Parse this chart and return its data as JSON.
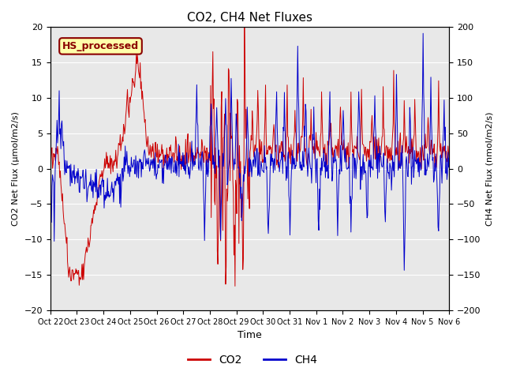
{
  "title": "CO2, CH4 Net Fluxes",
  "xlabel": "Time",
  "ylabel_left": "CO2 Net Flux (μmol/m2/s)",
  "ylabel_right": "CH4 Net Flux (nmol/m2/s)",
  "ylim_left": [
    -20,
    20
  ],
  "ylim_right": [
    -200,
    200
  ],
  "yticks_left": [
    -20,
    -15,
    -10,
    -5,
    0,
    5,
    10,
    15,
    20
  ],
  "yticks_right": [
    -200,
    -150,
    -100,
    -50,
    0,
    50,
    100,
    150,
    200
  ],
  "xtick_labels": [
    "Oct 22",
    "Oct 23",
    "Oct 24",
    "Oct 25",
    "Oct 26",
    "Oct 27",
    "Oct 28",
    "Oct 29",
    "Oct 30",
    "Oct 31",
    "Nov 1",
    "Nov 2",
    "Nov 3",
    "Nov 4",
    "Nov 5",
    "Nov 6"
  ],
  "co2_color": "#CC0000",
  "ch4_color": "#0000CC",
  "legend_entries": [
    "CO2",
    "CH4"
  ],
  "annotation_text": "HS_processed",
  "annotation_color": "#8B0000",
  "annotation_bg": "#FFFFAA",
  "bg_color": "#E8E8E8",
  "grid_color": "#FFFFFF",
  "linewidth": 0.7,
  "n_days": 15,
  "points_per_day": 48,
  "seed": 42
}
